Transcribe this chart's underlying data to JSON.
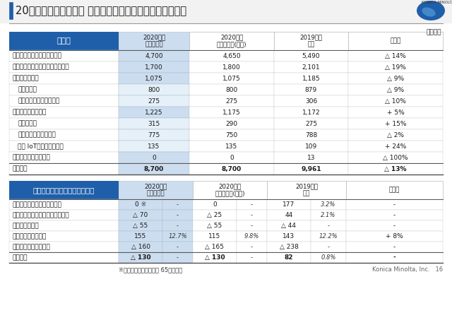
{
  "title_main": "20年度　業績見通し｜ 事業セグメント別売上高と営業利益",
  "unit_label": "【億円】",
  "bg_color": "#ffffff",
  "header_bg": "#1f5faa",
  "header_fg": "#ffffff",
  "col1_bg_light": "#d6e4f0",
  "col1_bg_mid": "#e8f1f8",
  "sales_header": "売上高",
  "sales_col_headers": [
    "2020年度\n通期見通し",
    "2020年度\n業績見通し(前回)",
    "2019年度\n実績",
    "前期比"
  ],
  "sales_rows": [
    [
      "デジタルワークプレイス事業",
      "4,700",
      "4,650",
      "5,490",
      "△ 14%",
      false
    ],
    [
      "プロフェッショナルプリント事業",
      "1,700",
      "1,800",
      "2,101",
      "△ 19%",
      false
    ],
    [
      "ヘルスケア事業",
      "1,075",
      "1,075",
      "1,185",
      "△ 9%",
      false
    ],
    [
      "　ヘルスケア",
      "800",
      "800",
      "879",
      "△ 9%",
      false
    ],
    [
      "　プレシジョンメディシン",
      "275",
      "275",
      "306",
      "△ 10%",
      false
    ],
    [
      "インダストリー事業",
      "1,225",
      "1,175",
      "1,172",
      "+ 5%",
      false
    ],
    [
      "　センシング",
      "315",
      "290",
      "275",
      "+ 15%",
      false
    ],
    [
      "　材料・コンポーネント",
      "775",
      "750",
      "788",
      "△ 2%",
      false
    ],
    [
      "　画像 IoTソリューション",
      "135",
      "135",
      "109",
      "+ 24%",
      false
    ],
    [
      "コーポレート他・連調",
      "0",
      "0",
      "13",
      "△ 100%",
      false
    ],
    [
      "全社合計",
      "8,700",
      "8,700",
      "9,961",
      "△ 13%",
      true
    ]
  ],
  "sales_col1_highlight_rows": [
    0,
    1,
    2,
    5,
    9,
    10
  ],
  "profit_header": "営業利益（右側：営業利益率）",
  "profit_col_headers": [
    "2020年度\n通期見通し",
    "2020年度\n業績見通し(前回)",
    "2019年度\n実績",
    "前期比"
  ],
  "profit_rows": [
    [
      "デジタルワークプレイス事業",
      "0 ※",
      "-",
      "0",
      "-",
      "177",
      "3.2%",
      "-",
      false
    ],
    [
      "プロフェッショナルプリント事業",
      "△ 70",
      "-",
      "△ 25",
      "-",
      "44",
      "2.1%",
      "-",
      false
    ],
    [
      "ヘルスケア事業",
      "△ 55",
      "-",
      "△ 55",
      "-",
      "△ 44",
      "-",
      "-",
      false
    ],
    [
      "インダストリー事業",
      "155",
      "12.7%",
      "115",
      "9.8%",
      "143",
      "12.2%",
      "+ 8%",
      false
    ],
    [
      "コーポレート他・連調",
      "△ 160",
      "-",
      "△ 165",
      "-",
      "△ 238",
      "-",
      "-",
      false
    ],
    [
      "全社合計",
      "△ 130",
      "-",
      "△ 130",
      "-",
      "82",
      "0.8%",
      "-",
      true
    ]
  ],
  "footnote": "※オフィス構造改革費用 65億円含む",
  "page_label": "Konica Minolta, Inc.   16"
}
